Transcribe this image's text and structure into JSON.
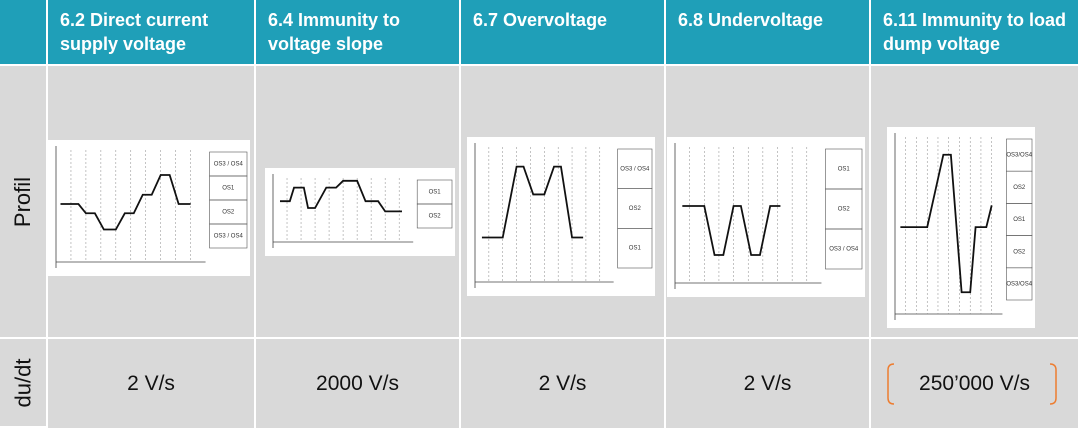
{
  "rows": [
    "Profil",
    "du/dt"
  ],
  "columns": [
    {
      "title": "6.2 Direct current supply voltage",
      "zones": [
        "OS3 / OS4",
        "OS1",
        "OS2",
        "OS3 / OS4"
      ],
      "dudt": "2 V/s"
    },
    {
      "title": "6.4 Immunity to voltage slope",
      "zones": [
        "OS1",
        "OS2"
      ],
      "dudt": "2000 V/s"
    },
    {
      "title": "6.7 Overvoltage",
      "zones": [
        "OS3 / OS4",
        "OS2",
        "OS1"
      ],
      "dudt": "2 V/s"
    },
    {
      "title": "6.8 Undervoltage",
      "zones": [
        "OS1",
        "OS2",
        "OS3 / OS4"
      ],
      "dudt": "2 V/s"
    },
    {
      "title": "6.11 Immunity to load dump voltage",
      "zones": [
        "OS3/OS4",
        "OS2",
        "OS1",
        "OS2",
        "OS3/OS4"
      ],
      "dudt": "250’000 V/s"
    }
  ]
}
